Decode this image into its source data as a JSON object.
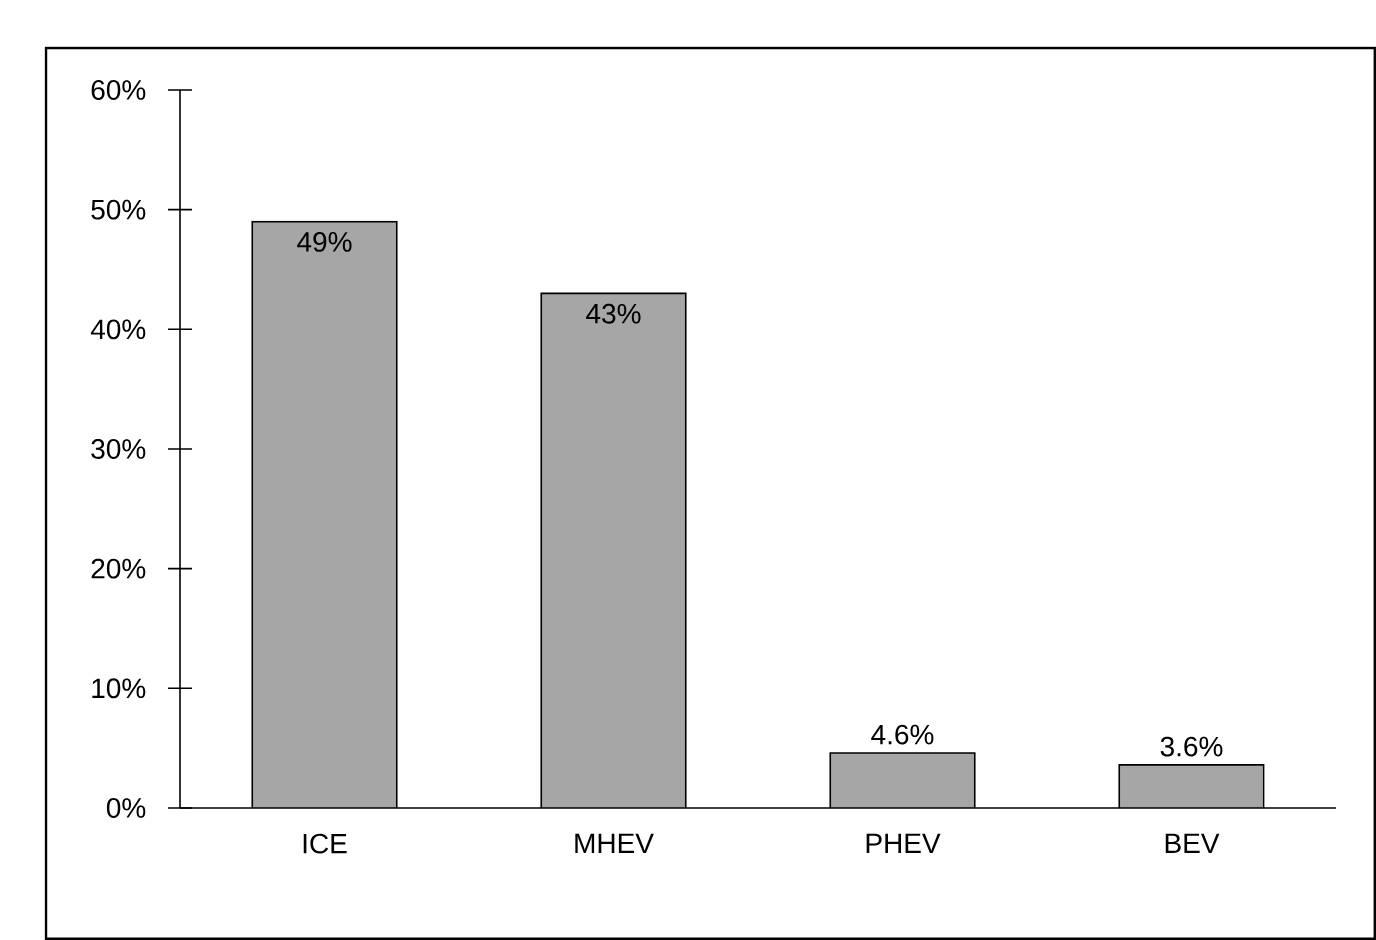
{
  "chart_data": {
    "type": "bar",
    "categories": [
      "ICE",
      "MHEV",
      "PHEV",
      "BEV"
    ],
    "values": [
      49,
      43,
      4.6,
      3.6
    ],
    "color": "#a6a6a6",
    "value_labels": [
      "49%",
      "43%",
      "4.6%",
      "3.6%"
    ],
    "ylim": [
      0,
      60
    ],
    "yticks": [
      {
        "value": 0,
        "label": "0%"
      },
      {
        "value": 10,
        "label": "10%"
      },
      {
        "value": 20,
        "label": "20%"
      },
      {
        "value": 30,
        "label": "30%"
      },
      {
        "value": 40,
        "label": "40%"
      },
      {
        "value": 50,
        "label": "50%"
      },
      {
        "value": 60,
        "label": "60%"
      }
    ],
    "grid": false
  }
}
